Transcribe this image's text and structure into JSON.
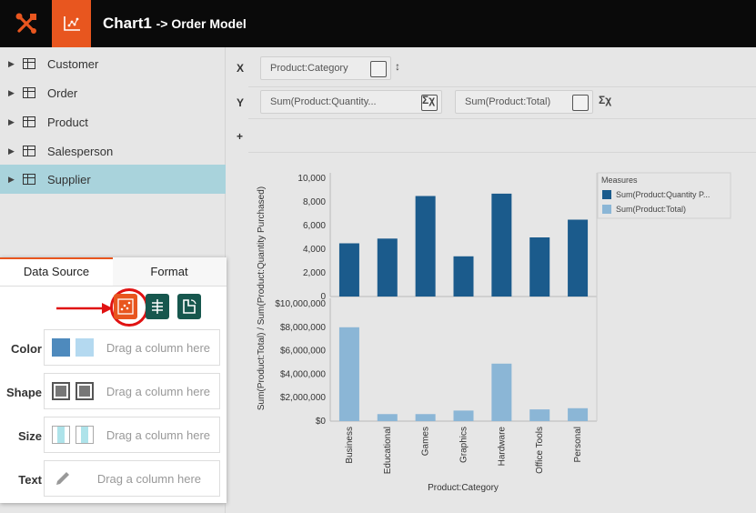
{
  "header": {
    "title": "Chart1",
    "subtitle": "-> Order Model"
  },
  "sidebar": {
    "items": [
      {
        "label": "Customer",
        "selected": false
      },
      {
        "label": "Order",
        "selected": false
      },
      {
        "label": "Product",
        "selected": false
      },
      {
        "label": "Salesperson",
        "selected": false
      },
      {
        "label": "Supplier",
        "selected": true
      }
    ]
  },
  "panel": {
    "tabs": [
      {
        "label": "Data Source",
        "active": true
      },
      {
        "label": "Format",
        "active": false
      }
    ],
    "rows": [
      {
        "label": "Color",
        "placeholder": "Drag a column here",
        "swatches": [
          "#4e8abd",
          "#b4d9f0"
        ]
      },
      {
        "label": "Shape",
        "placeholder": "Drag a column here"
      },
      {
        "label": "Size",
        "placeholder": "Drag a column here"
      },
      {
        "label": "Text",
        "placeholder": "Drag a column here"
      }
    ]
  },
  "bindings": {
    "x_label": "X",
    "y_label": "Y",
    "plus_label": "+",
    "x_field": "Product:Category",
    "y_fields": [
      "Sum(Product:Quantity...",
      "Sum(Product:Total)"
    ]
  },
  "chart_data": {
    "type": "bar",
    "categories": [
      "Business",
      "Educational",
      "Games",
      "Graphics",
      "Hardware",
      "Office Tools",
      "Personal"
    ],
    "series": [
      {
        "name": "Sum(Product:Quantity P...",
        "color": "#1b5b8c",
        "values": [
          4500,
          4900,
          8500,
          3400,
          8700,
          5000,
          6500
        ]
      },
      {
        "name": "Sum(Product:Total)",
        "color": "#8bb6d6",
        "values": [
          8000000,
          600000,
          600000,
          900000,
          4900000,
          1000000,
          1100000
        ]
      }
    ],
    "top_ticks": [
      "10,000",
      "8,000",
      "6,000",
      "4,000",
      "2,000",
      "0"
    ],
    "bottom_ticks": [
      "$10,000,000",
      "$8,000,000",
      "$6,000,000",
      "$4,000,000",
      "$2,000,000",
      "$0"
    ],
    "top_ylim": [
      0,
      10000
    ],
    "bottom_ylim": [
      0,
      10000000
    ],
    "ylabel": "Sum(Product:Total) / Sum(Product:Quantity Purchased)",
    "xlabel": "Product:Category",
    "legend_title": "Measures",
    "legend_position": "top-right"
  }
}
